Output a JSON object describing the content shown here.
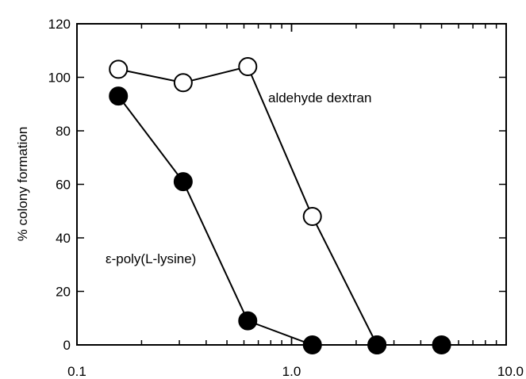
{
  "chart_data": {
    "type": "scatter",
    "xscale": "log",
    "xlim": [
      0.1,
      10.0
    ],
    "ylim": [
      0,
      120
    ],
    "xlabel": "",
    "ylabel": "% colony formation",
    "x_tick_labels": [
      "0.1",
      "1.0",
      "10.0"
    ],
    "x_major_ticks": [
      0.1,
      1.0,
      10.0
    ],
    "y_ticks": [
      0,
      20,
      40,
      60,
      80,
      100,
      120
    ],
    "y_tick_labels": [
      "0",
      "20",
      "40",
      "60",
      "80",
      "100",
      "120"
    ],
    "series": [
      {
        "name": "aldehyde dextran",
        "marker": "open-circle",
        "color": "#000000",
        "connected": true,
        "x": [
          0.156,
          0.3125,
          0.625,
          1.25,
          2.5
        ],
        "y": [
          103,
          98,
          104,
          48,
          0
        ]
      },
      {
        "name": "ε-poly(L-lysine)",
        "marker": "filled-circle",
        "color": "#000000",
        "connected": true,
        "x": [
          0.156,
          0.3125,
          0.625,
          1.25,
          2.5,
          5.0
        ],
        "y": [
          93,
          61,
          9,
          0,
          0,
          0
        ]
      }
    ],
    "legend": "none",
    "grid": false
  }
}
